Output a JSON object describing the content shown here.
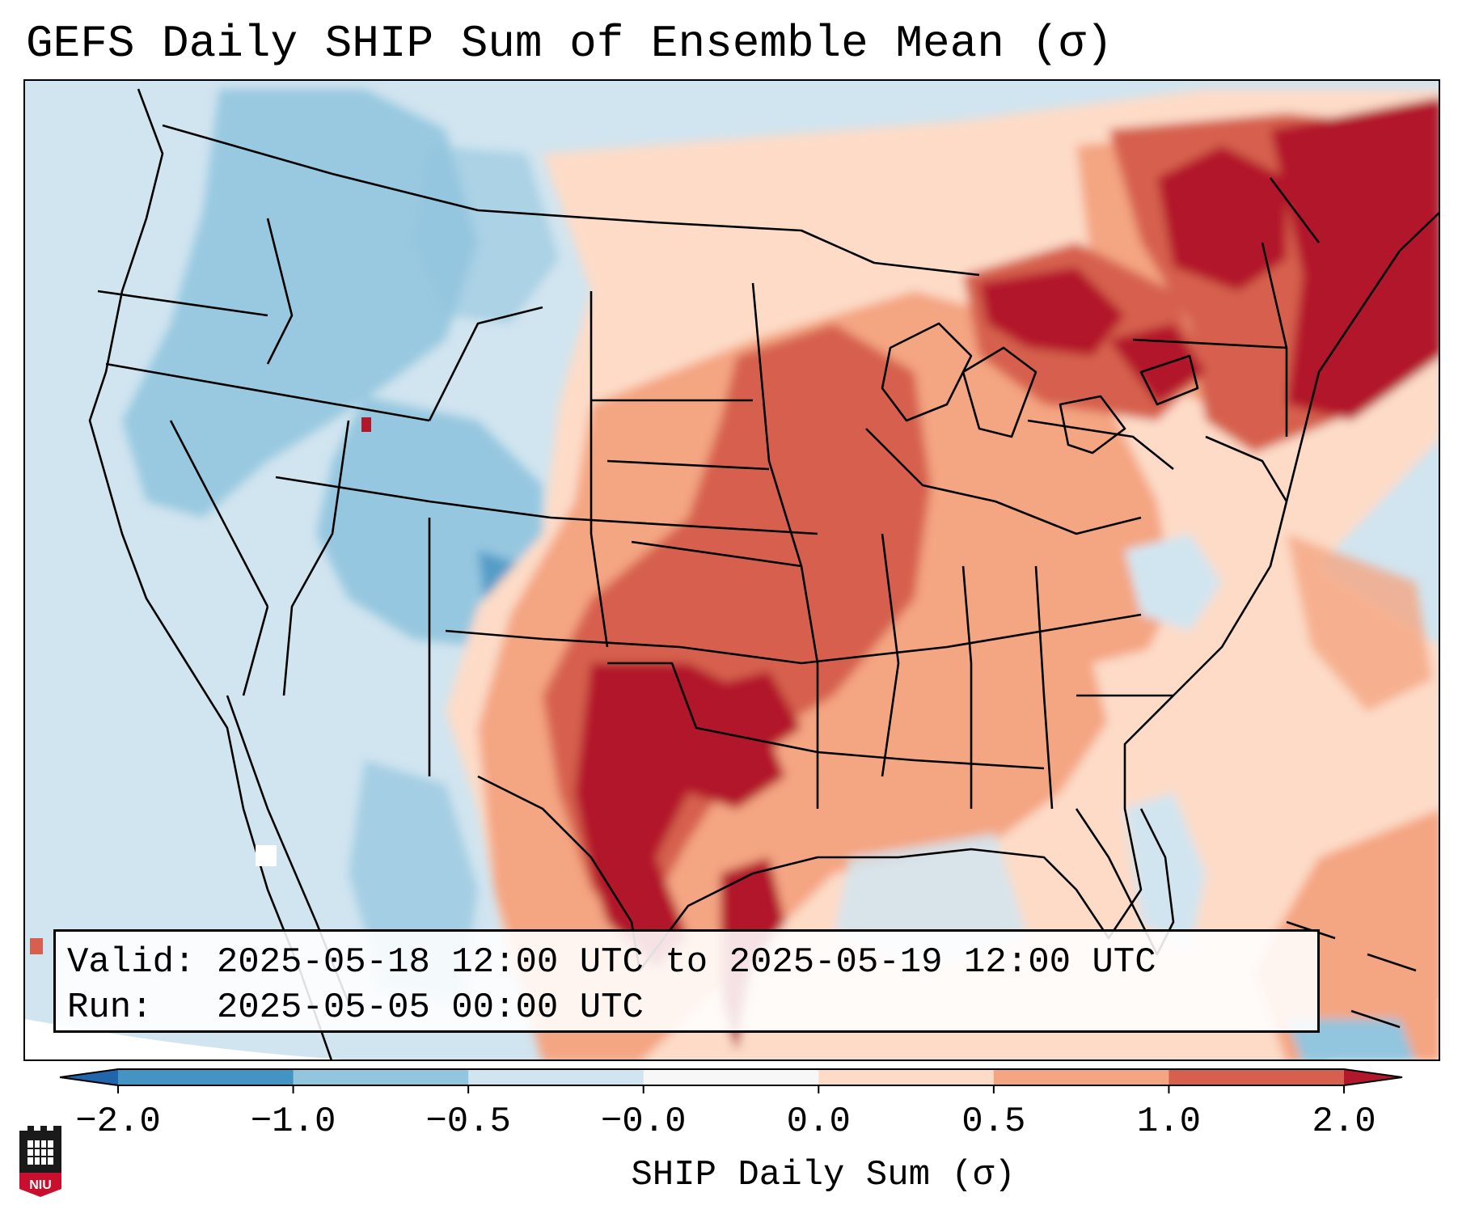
{
  "title": "GEFS Daily SHIP Sum of Ensemble Mean (σ)",
  "valid_line": "Valid: 2025-05-18 12:00 UTC to 2025-05-19 12:00 UTC",
  "run_line": "Run:   2025-05-05 00:00 UTC",
  "colorbar": {
    "label": "SHIP Daily Sum (σ)",
    "ticks": [
      "−2.0",
      "−1.0",
      "−0.5",
      "−0.0",
      "0.0",
      "0.5",
      "1.0",
      "2.0"
    ],
    "bins": [
      {
        "color": "#4393c3"
      },
      {
        "color": "#92c5de"
      },
      {
        "color": "#d1e5f0"
      },
      {
        "color": "#f7f7f7"
      },
      {
        "color": "#fddbc7"
      },
      {
        "color": "#f4a582"
      },
      {
        "color": "#d6604d"
      }
    ],
    "under_color": "#2166ac",
    "over_color": "#b2182b"
  },
  "logo": {
    "text": "NIU",
    "colors": {
      "shield": "#1a1a1a",
      "band": "#c8102e"
    }
  },
  "map_colors": {
    "ocean_fill": "#d1e5f0",
    "strong_pos": "#b2182b",
    "pos": "#d6604d",
    "mild_pos": "#f4a582",
    "light_pos": "#fddbc7",
    "light_neg": "#d1e5f0",
    "neg": "#92c5de",
    "strong_neg": "#4393c3"
  }
}
